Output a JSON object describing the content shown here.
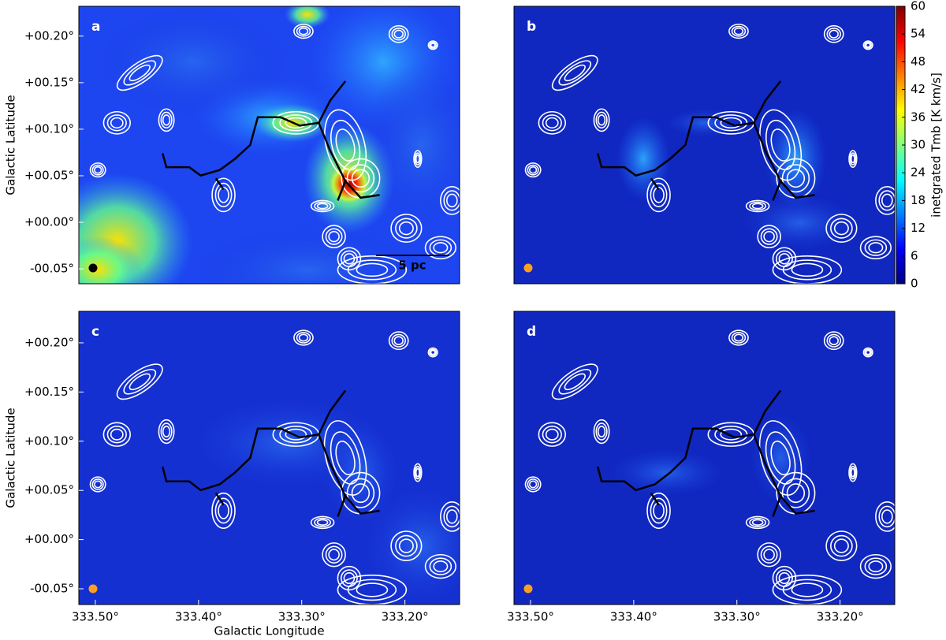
{
  "chart_data": [
    {
      "type": "map",
      "panel_label": "a",
      "y_label": "Galactic Latitude",
      "scale_bar": "5 pc",
      "xlim": [
        333.516,
        333.147
      ],
      "ylim": [
        -0.066,
        0.232
      ],
      "yticks": [
        {
          "value": 0.2,
          "label": "+00.20°"
        },
        {
          "value": 0.15,
          "label": "+00.15°"
        },
        {
          "value": 0.1,
          "label": "+00.10°"
        },
        {
          "value": 0.05,
          "label": "+00.05°"
        },
        {
          "value": 0,
          "label": "+00.00°"
        },
        {
          "value": -0.05,
          "label": "-00.05°"
        }
      ]
    },
    {
      "type": "map",
      "panel_label": "b",
      "xlim": [
        333.516,
        333.147
      ],
      "ylim": [
        -0.066,
        0.232
      ],
      "colorbar": {
        "label": "inetgrated Tmb [K km/s]",
        "lim": [
          0,
          60
        ],
        "ticks": [
          0,
          6,
          12,
          18,
          24,
          30,
          36,
          42,
          48,
          54,
          60
        ]
      }
    },
    {
      "type": "map",
      "panel_label": "c",
      "y_label": "Galactic Latitude",
      "x_label": "Galactic Longitude",
      "xlim": [
        333.516,
        333.147
      ],
      "ylim": [
        -0.066,
        0.232
      ],
      "xticks": [
        {
          "value": 333.5,
          "label": "333.50°"
        },
        {
          "value": 333.4,
          "label": "333.40°"
        },
        {
          "value": 333.3,
          "label": "333.30°"
        },
        {
          "value": 333.2,
          "label": "333.20°"
        }
      ],
      "yticks": [
        {
          "value": 0.2,
          "label": "+00.20°"
        },
        {
          "value": 0.15,
          "label": "+00.15°"
        },
        {
          "value": 0.1,
          "label": "+00.10°"
        },
        {
          "value": 0.05,
          "label": "+00.05°"
        },
        {
          "value": 0,
          "label": "+00.00°"
        },
        {
          "value": -0.05,
          "label": "-00.05°"
        }
      ]
    },
    {
      "type": "map",
      "panel_label": "d",
      "xlim": [
        333.516,
        333.147
      ],
      "ylim": [
        -0.066,
        0.232
      ],
      "xticks": [
        {
          "value": 333.5,
          "label": "333.50°"
        },
        {
          "value": 333.4,
          "label": "333.40°"
        },
        {
          "value": 333.3,
          "label": "333.30°"
        },
        {
          "value": 333.2,
          "label": "333.20°"
        }
      ]
    }
  ]
}
